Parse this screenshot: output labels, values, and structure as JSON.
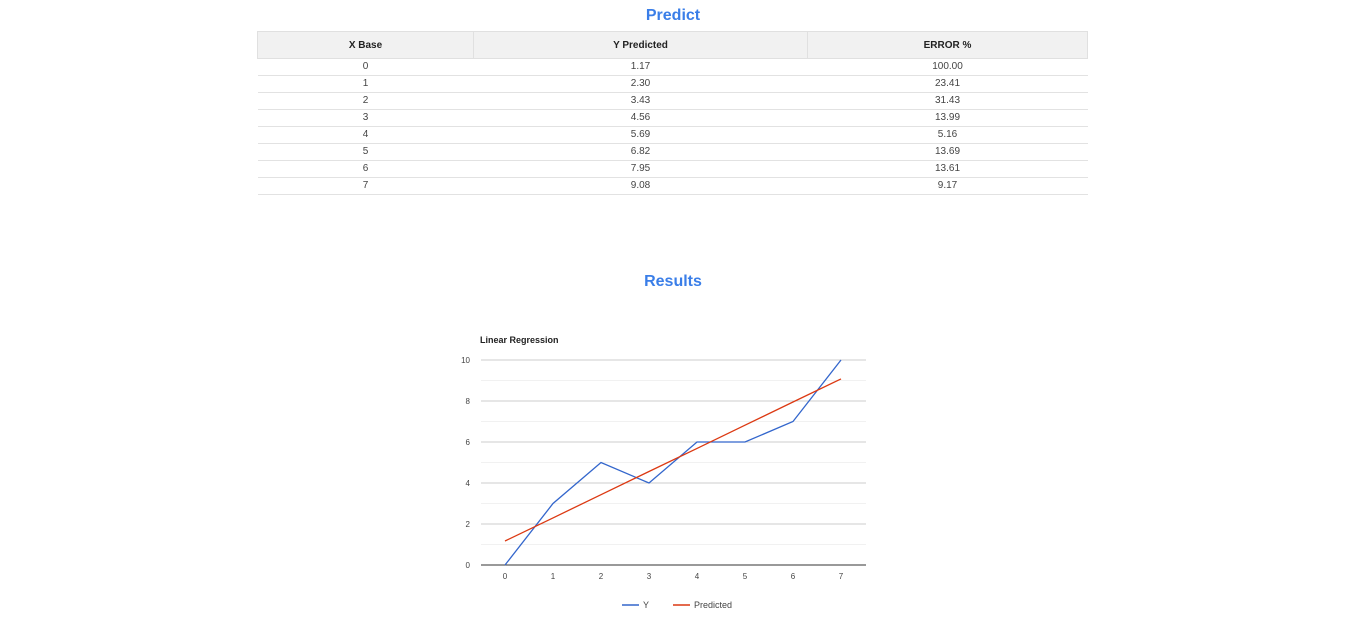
{
  "predict": {
    "title": "Predict",
    "columns": [
      "X Base",
      "Y Predicted",
      "ERROR %"
    ],
    "rows": [
      [
        "0",
        "1.17",
        "100.00"
      ],
      [
        "1",
        "2.30",
        "23.41"
      ],
      [
        "2",
        "3.43",
        "31.43"
      ],
      [
        "3",
        "4.56",
        "13.99"
      ],
      [
        "4",
        "5.69",
        "5.16"
      ],
      [
        "5",
        "6.82",
        "13.69"
      ],
      [
        "6",
        "7.95",
        "13.61"
      ],
      [
        "7",
        "9.08",
        "9.17"
      ]
    ]
  },
  "results": {
    "title": "Results"
  },
  "chart_data": {
    "type": "line",
    "title": "Linear Regression",
    "x": [
      0,
      1,
      2,
      3,
      4,
      5,
      6,
      7
    ],
    "series": [
      {
        "name": "Y",
        "color": "#3366cc",
        "values": [
          0,
          3,
          5,
          4,
          6,
          6,
          7,
          10
        ]
      },
      {
        "name": "Predicted",
        "color": "#dc3912",
        "values": [
          1.17,
          2.3,
          3.43,
          4.56,
          5.69,
          6.82,
          7.95,
          9.08
        ]
      }
    ],
    "yticks": [
      0,
      2,
      4,
      6,
      8,
      10
    ],
    "ylim": [
      0,
      10
    ],
    "xlabel": "",
    "ylabel": "",
    "legend_position": "bottom",
    "grid": true
  }
}
